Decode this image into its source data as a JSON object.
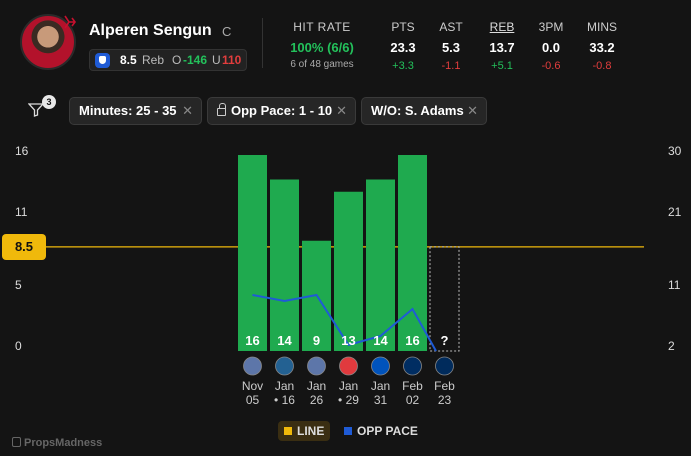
{
  "player": {
    "name": "Alperen Sengun",
    "position": "C"
  },
  "prop": {
    "line": "8.5",
    "stat": "Reb",
    "over_label": "O",
    "over_odds": "-146",
    "under_label": "U",
    "under_odds": "110"
  },
  "hit_rate": {
    "label": "HIT RATE",
    "value": "100% (6/6)",
    "sub": "6 of 48 games"
  },
  "stats": [
    {
      "label": "PTS",
      "value": "23.3",
      "diff": "+3.3",
      "dir": "pos",
      "active": false
    },
    {
      "label": "AST",
      "value": "5.3",
      "diff": "-1.1",
      "dir": "neg",
      "active": false
    },
    {
      "label": "REB",
      "value": "13.7",
      "diff": "+5.1",
      "dir": "pos",
      "active": true
    },
    {
      "label": "3PM",
      "value": "0.0",
      "diff": "-0.6",
      "dir": "neg",
      "active": false
    },
    {
      "label": "MINS",
      "value": "33.2",
      "diff": "-0.8",
      "dir": "neg",
      "active": false
    }
  ],
  "filters": {
    "count": "3",
    "chips": [
      {
        "label": "Minutes: 25 - 35",
        "locked": false
      },
      {
        "label": "Opp Pace: 1 - 10",
        "locked": true
      },
      {
        "label": "W/O: S. Adams",
        "locked": false
      }
    ]
  },
  "chart_data": {
    "type": "bar",
    "categories": [
      "Nov 05",
      "Jan 16",
      "Jan 26",
      "Jan 29",
      "Jan 31",
      "Feb 02",
      "Feb 23"
    ],
    "date_top": [
      "Nov",
      "Jan",
      "Jan",
      "Jan",
      "Jan",
      "Feb",
      "Feb"
    ],
    "date_bottom": [
      "05",
      "• 16",
      "26",
      "• 29",
      "31",
      "02",
      "23"
    ],
    "opponents": [
      "MEM",
      "MIN",
      "MEM",
      "ATL",
      "DAL",
      "IND",
      "UTA"
    ],
    "values": [
      16,
      14,
      9,
      13,
      14,
      16,
      null
    ],
    "value_labels": [
      "16",
      "14",
      "9",
      "13",
      "14",
      "16",
      "?"
    ],
    "line": 8.5,
    "y_left_ticks": [
      "16",
      "11",
      "5",
      "0"
    ],
    "y_right_ticks": [
      "30",
      "21",
      "11",
      "2"
    ],
    "ylim": [
      0,
      16
    ],
    "opp_pace": {
      "name": "OPP PACE",
      "values": [
        11,
        10,
        11,
        2,
        2,
        7
      ],
      "ylim": [
        2,
        30
      ]
    },
    "colors": {
      "bar": "#1faa4f",
      "line": "#f0b90b",
      "pace": "#1f5bd6",
      "pending": "#bbbbbb"
    }
  },
  "legend": {
    "line_label": "LINE",
    "pace_label": "OPP PACE"
  },
  "brand": "PropsMadness"
}
